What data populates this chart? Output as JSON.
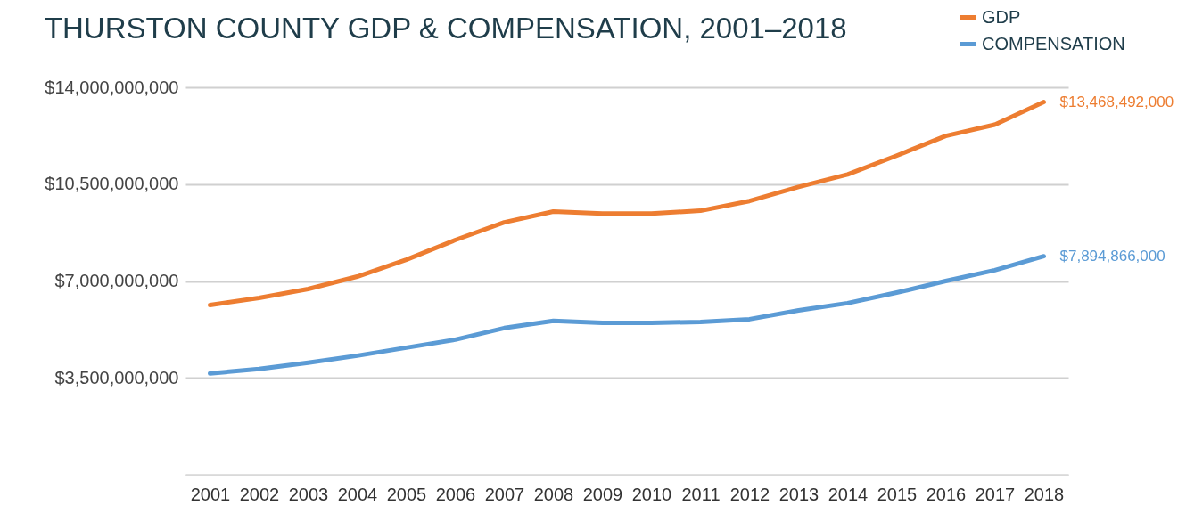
{
  "chart_data": {
    "type": "line",
    "title": "THURSTON COUNTY GDP & COMPENSATION, 2001–2018",
    "categories": [
      "2001",
      "2002",
      "2003",
      "2004",
      "2005",
      "2006",
      "2007",
      "2008",
      "2009",
      "2010",
      "2011",
      "2012",
      "2013",
      "2014",
      "2015",
      "2016",
      "2017",
      "2018"
    ],
    "series": [
      {
        "name": "GDP",
        "color": "#ed7d31",
        "values": [
          6130000000,
          6390000000,
          6710000000,
          7160000000,
          7770000000,
          8480000000,
          9120000000,
          9510000000,
          9440000000,
          9440000000,
          9540000000,
          9890000000,
          10400000000,
          10850000000,
          11530000000,
          12240000000,
          12650000000,
          13468492000
        ],
        "value_labels": [
          null,
          null,
          null,
          null,
          null,
          null,
          null,
          null,
          null,
          null,
          null,
          null,
          null,
          null,
          null,
          null,
          null,
          "$13,468,492,000"
        ]
      },
      {
        "name": "COMPENSATION",
        "color": "#5b9bd5",
        "values": [
          3660000000,
          3820000000,
          4050000000,
          4300000000,
          4590000000,
          4880000000,
          5300000000,
          5560000000,
          5490000000,
          5490000000,
          5520000000,
          5620000000,
          5940000000,
          6200000000,
          6580000000,
          7000000000,
          7390000000,
          7894866000
        ],
        "value_labels": [
          null,
          null,
          null,
          null,
          null,
          null,
          null,
          null,
          null,
          null,
          null,
          null,
          null,
          null,
          null,
          null,
          null,
          "$7,894,866,000"
        ]
      }
    ],
    "ylim": [
      0,
      14000000000
    ],
    "yticks": [
      {
        "value": 0,
        "label": null
      },
      {
        "value": 3500000000,
        "label": "$3,500,000,000"
      },
      {
        "value": 7000000000,
        "label": "$7,000,000,000"
      },
      {
        "value": 10500000000,
        "label": "$10,500,000,000"
      },
      {
        "value": 14000000000,
        "label": "$14,000,000,000"
      }
    ],
    "grid": "y",
    "legend": "top right",
    "marker": "none",
    "line_style": "solid"
  }
}
